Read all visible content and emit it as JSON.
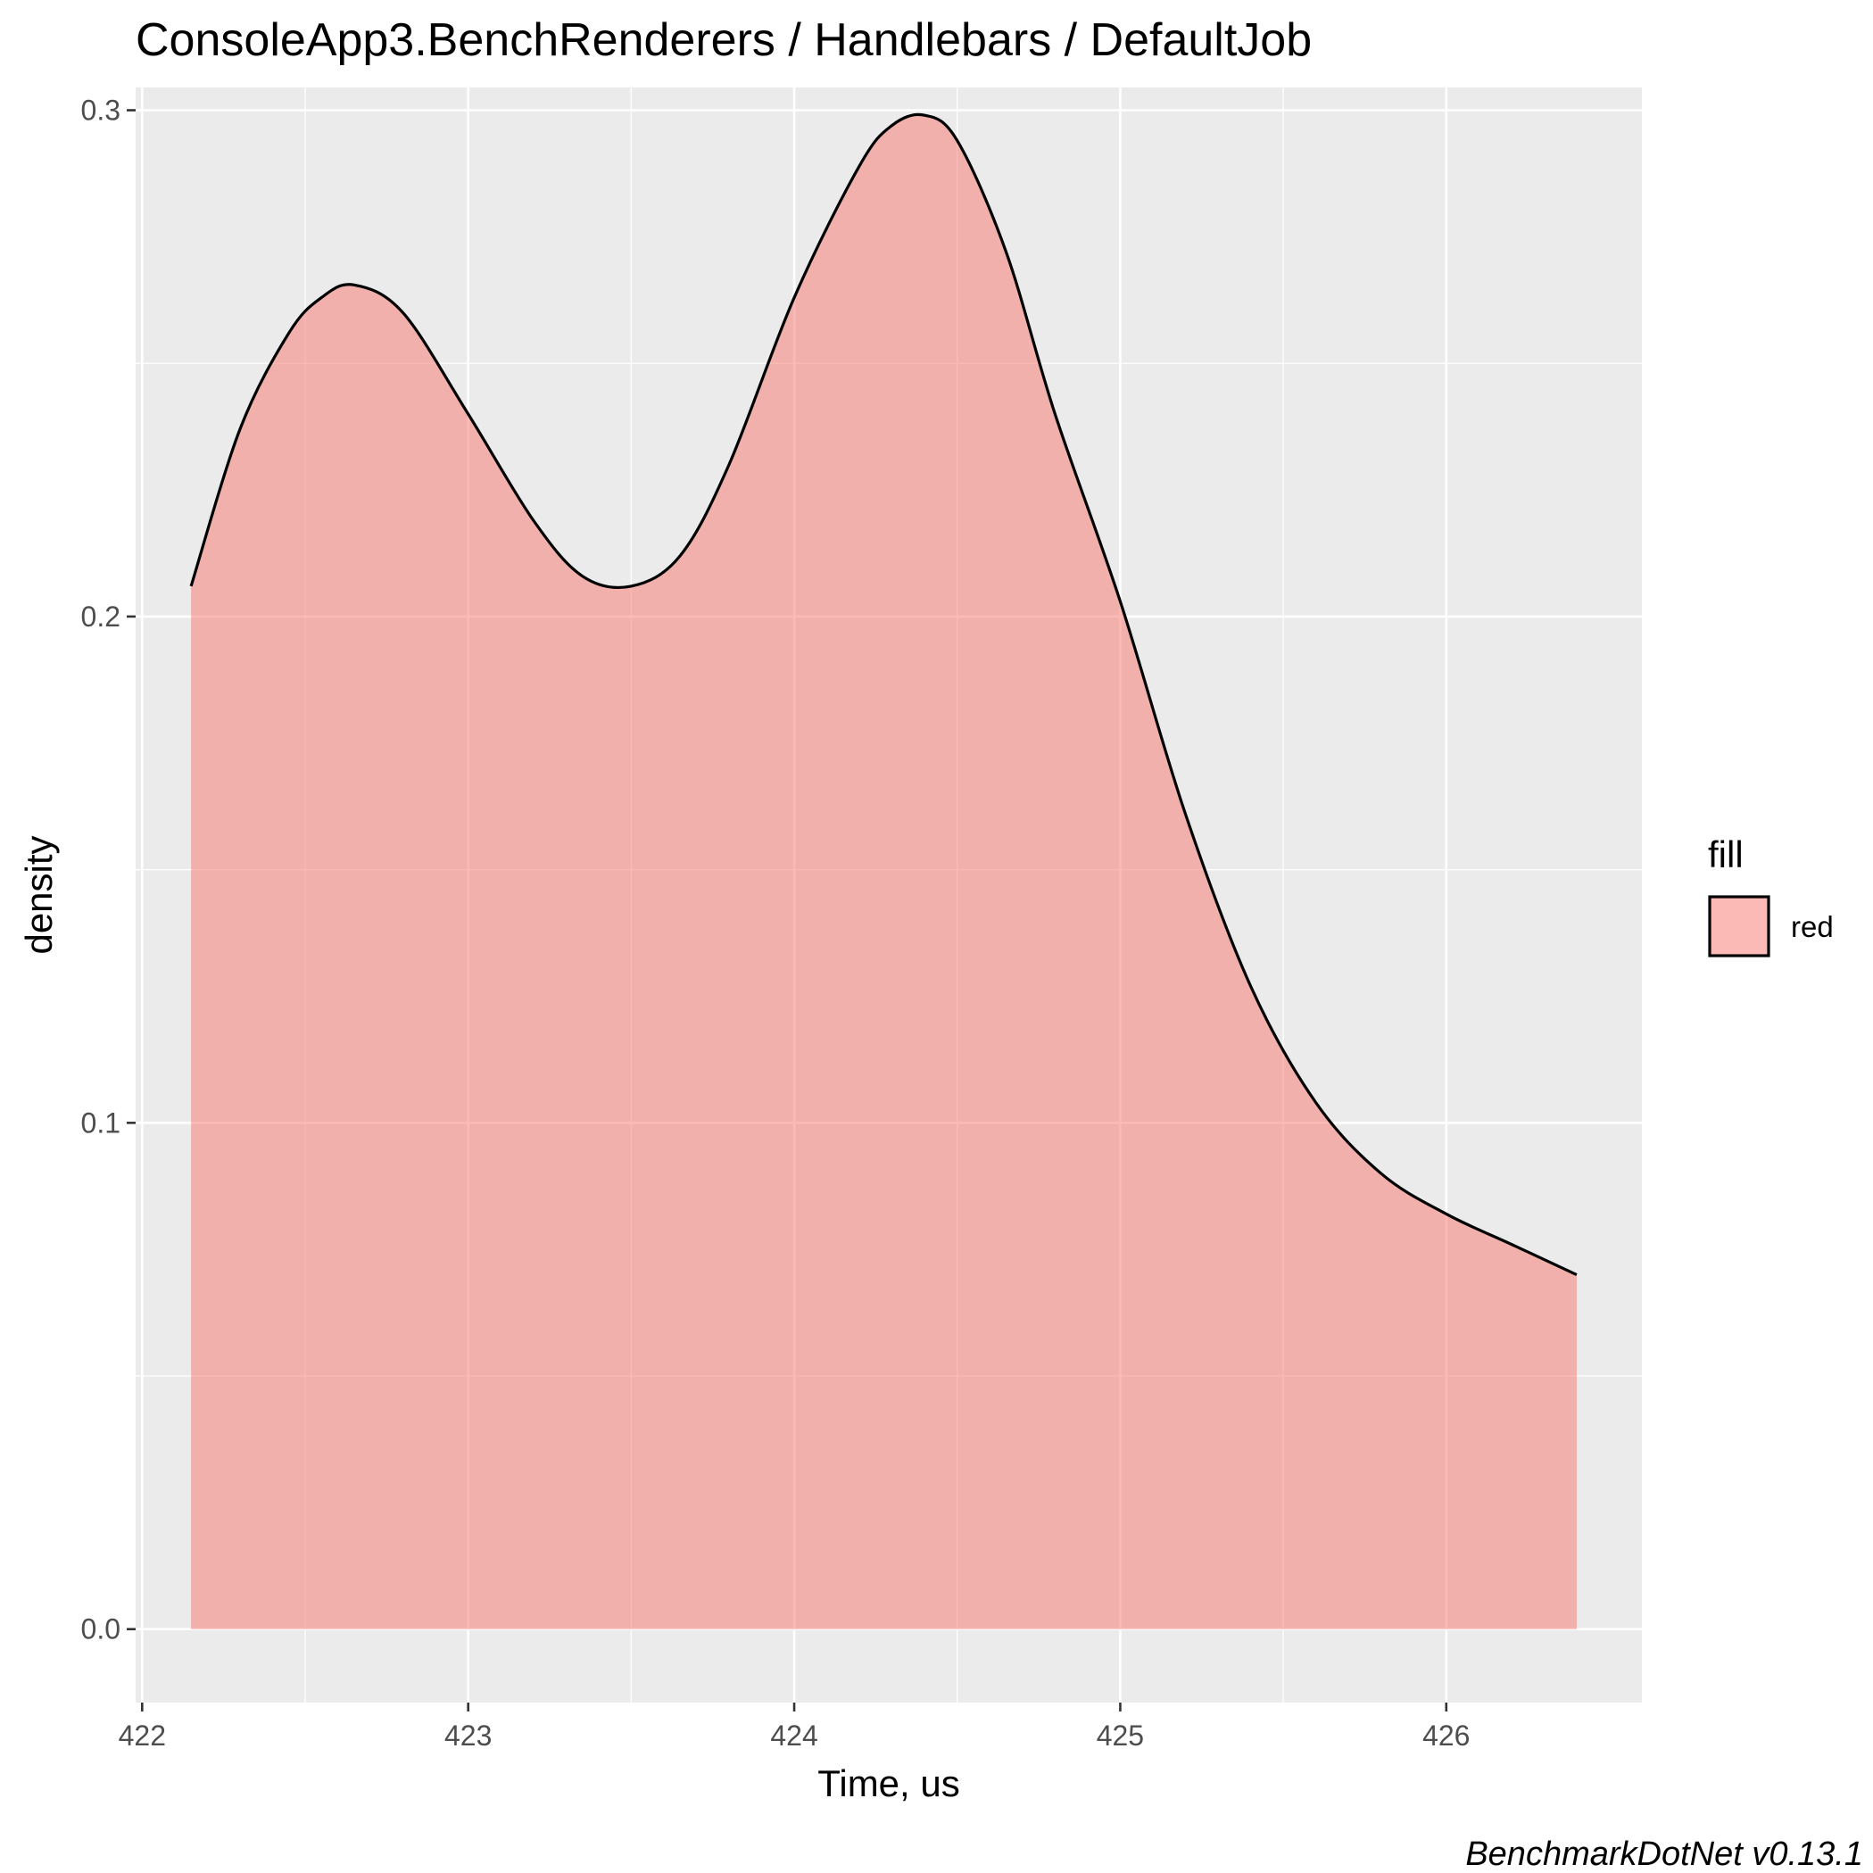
{
  "chart_data": {
    "type": "area",
    "title": "ConsoleApp3.BenchRenderers / Handlebars / DefaultJob",
    "xlabel": "Time, us",
    "ylabel": "density",
    "caption": "BenchmarkDotNet v0.13.1",
    "xlim": [
      421.98,
      426.6
    ],
    "ylim": [
      -0.0145,
      0.3045
    ],
    "x_ticks": [
      422,
      423,
      424,
      425,
      426
    ],
    "x_tick_labels": [
      "422",
      "423",
      "424",
      "425",
      "426"
    ],
    "y_ticks": [
      0.0,
      0.1,
      0.2,
      0.3
    ],
    "y_tick_labels": [
      "0.0",
      "0.1",
      "0.2",
      "0.3"
    ],
    "grid": true,
    "legend": {
      "title": "fill",
      "position": "right",
      "entries": [
        {
          "label": "red",
          "color": "#f8766d"
        }
      ]
    },
    "colors": {
      "fill": "#f8766d",
      "fill_opacity": 0.5,
      "line": "#000000",
      "panel": "#ebebeb",
      "grid": "#ffffff"
    },
    "series": [
      {
        "name": "red",
        "x": [
          422.15,
          422.3,
          422.45,
          422.55,
          422.65,
          422.8,
          423.0,
          423.2,
          423.35,
          423.5,
          423.65,
          423.8,
          424.0,
          424.2,
          424.3,
          424.4,
          424.5,
          424.65,
          424.8,
          425.0,
          425.2,
          425.4,
          425.6,
          425.8,
          426.0,
          426.2,
          426.4
        ],
        "y": [
          0.206,
          0.237,
          0.256,
          0.263,
          0.2655,
          0.26,
          0.24,
          0.219,
          0.208,
          0.206,
          0.212,
          0.23,
          0.263,
          0.289,
          0.297,
          0.299,
          0.294,
          0.272,
          0.24,
          0.203,
          0.161,
          0.127,
          0.104,
          0.09,
          0.082,
          0.076,
          0.07
        ]
      }
    ]
  }
}
